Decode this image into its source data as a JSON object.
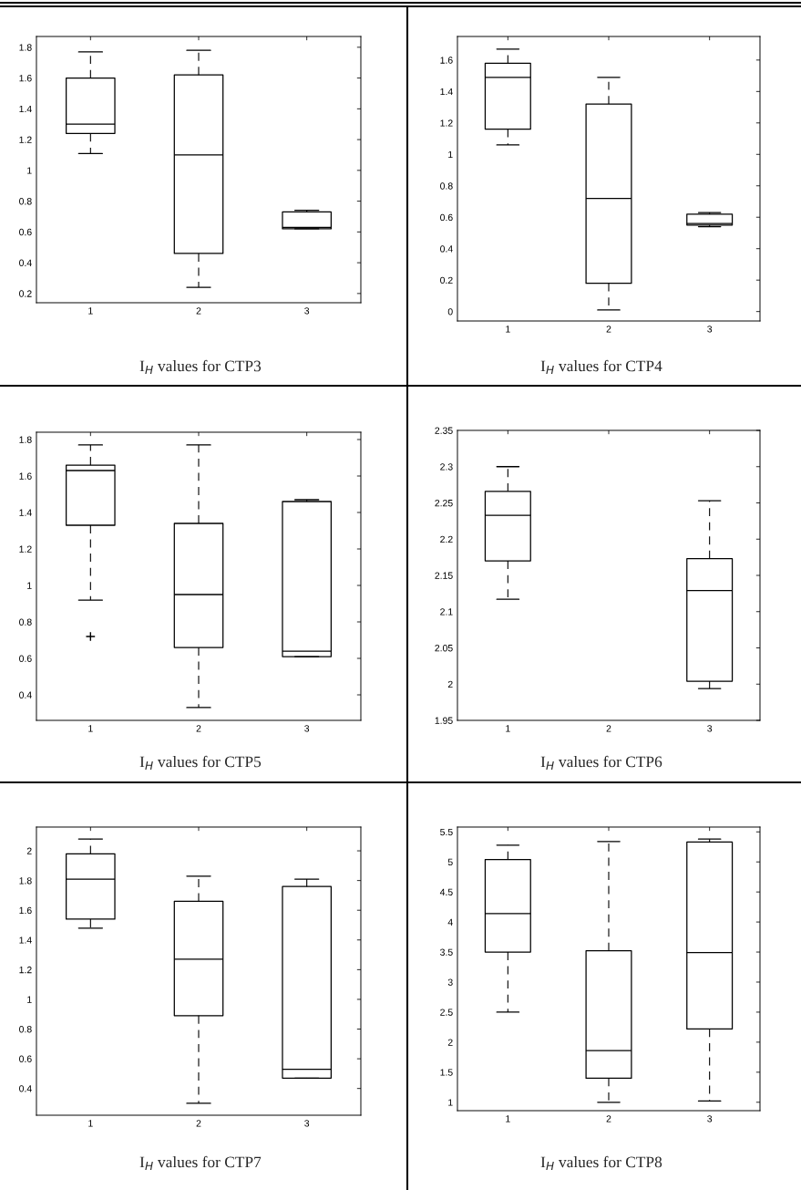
{
  "chart_data": [
    {
      "type": "box",
      "title": "I$_{H}$ values for CTP3",
      "categories": [
        "1",
        "2",
        "3"
      ],
      "ylim": [
        0.14,
        1.87
      ],
      "yticks": [
        0.2,
        0.4,
        0.6,
        0.8,
        1,
        1.2,
        1.4,
        1.6,
        1.8
      ],
      "line_style": "dashed",
      "boxes": [
        {
          "low": 1.11,
          "q1": 1.24,
          "median": 1.3,
          "q3": 1.6,
          "high": 1.77
        },
        {
          "low": 0.24,
          "q1": 0.46,
          "median": 1.1,
          "q3": 1.62,
          "high": 1.78
        },
        {
          "low": 0.62,
          "q1": 0.62,
          "median": 0.63,
          "q3": 0.73,
          "high": 0.74
        }
      ]
    },
    {
      "type": "box",
      "title": "I$_{H}$ values for CTP4",
      "categories": [
        "1",
        "2",
        "3"
      ],
      "ylim": [
        -0.06,
        1.75
      ],
      "yticks": [
        0,
        0.2,
        0.4,
        0.6,
        0.8,
        1,
        1.2,
        1.4,
        1.6
      ],
      "line_style": "dashed",
      "boxes": [
        {
          "low": 1.06,
          "q1": 1.16,
          "median": 1.49,
          "q3": 1.58,
          "high": 1.67
        },
        {
          "low": 0.01,
          "q1": 0.18,
          "median": 0.72,
          "q3": 1.32,
          "high": 1.49
        },
        {
          "low": 0.54,
          "q1": 0.55,
          "median": 0.56,
          "q3": 0.62,
          "high": 0.63
        }
      ]
    },
    {
      "type": "box",
      "title": "I$_{H}$ values for CTP5",
      "categories": [
        "1",
        "2",
        "3"
      ],
      "ylim": [
        0.26,
        1.84
      ],
      "yticks": [
        0.4,
        0.6,
        0.8,
        1,
        1.2,
        1.4,
        1.6,
        1.8
      ],
      "line_style": "dashed",
      "marker": "cross",
      "boxes": [
        {
          "low": 0.92,
          "q1": 1.33,
          "median": 1.63,
          "q3": 1.66,
          "high": 1.77,
          "outliers": [
            0.72
          ]
        },
        {
          "low": 0.33,
          "q1": 0.66,
          "median": 0.95,
          "q3": 1.34,
          "high": 1.77
        },
        {
          "low": 0.61,
          "q1": 0.61,
          "median": 0.64,
          "q3": 1.46,
          "high": 1.47
        }
      ]
    },
    {
      "type": "box",
      "title": "I$_{H}$ values for CTP6",
      "categories": [
        "1",
        "2",
        "3"
      ],
      "ylim": [
        1.95,
        2.35
      ],
      "yticks": [
        1.95,
        2,
        2.05,
        2.1,
        2.15,
        2.2,
        2.25,
        2.3,
        2.35
      ],
      "line_style": "dashed",
      "boxes": [
        {
          "low": 2.117,
          "q1": 2.17,
          "median": 2.233,
          "q3": 2.266,
          "high": 2.3
        },
        null,
        {
          "low": 1.994,
          "q1": 2.004,
          "median": 2.129,
          "q3": 2.173,
          "high": 2.253
        }
      ]
    },
    {
      "type": "box",
      "title": "I$_{H}$ values for CTP7",
      "categories": [
        "1",
        "2",
        "3"
      ],
      "ylim": [
        0.22,
        2.16
      ],
      "yticks": [
        0.4,
        0.6,
        0.8,
        1,
        1.2,
        1.4,
        1.6,
        1.8,
        2
      ],
      "line_style": "dashed",
      "boxes": [
        {
          "low": 1.48,
          "q1": 1.54,
          "median": 1.81,
          "q3": 1.98,
          "high": 2.08
        },
        {
          "low": 0.3,
          "q1": 0.89,
          "median": 1.27,
          "q3": 1.66,
          "high": 1.83
        },
        {
          "low": 0.47,
          "q1": 0.47,
          "median": 0.53,
          "q3": 1.76,
          "high": 1.81
        }
      ]
    },
    {
      "type": "box",
      "title": "I$_{H}$ values for CTP8",
      "categories": [
        "1",
        "2",
        "3"
      ],
      "ylim": [
        0.86,
        5.58
      ],
      "yticks": [
        1,
        1.5,
        2,
        2.5,
        3,
        3.5,
        4,
        4.5,
        5,
        5.5
      ],
      "line_style": "dashed",
      "boxes": [
        {
          "low": 2.5,
          "q1": 3.5,
          "median": 4.14,
          "q3": 5.04,
          "high": 5.28
        },
        {
          "low": 1.0,
          "q1": 1.4,
          "median": 1.86,
          "q3": 3.52,
          "high": 5.34
        },
        {
          "low": 1.02,
          "q1": 2.22,
          "median": 3.49,
          "q3": 5.33,
          "high": 5.38
        }
      ]
    }
  ]
}
